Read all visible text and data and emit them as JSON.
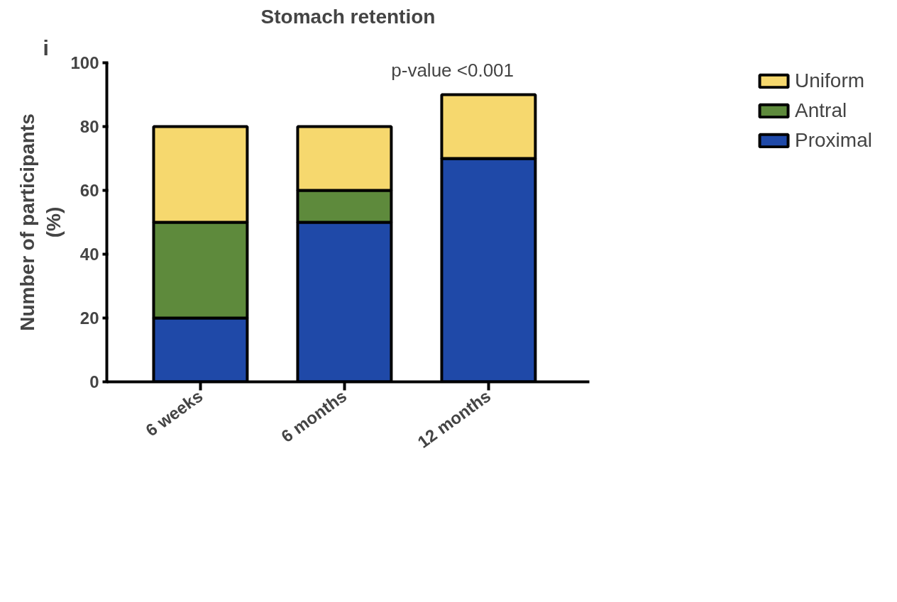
{
  "chart_data": {
    "type": "bar",
    "title": "Stomach retention",
    "ylabel": "Number of participants\n(%)",
    "categories": [
      "6 weeks",
      "6 months",
      "12 months"
    ],
    "stacked": true,
    "ylim": [
      0,
      100
    ],
    "yticks": [
      0,
      20,
      40,
      60,
      80,
      100
    ],
    "grid": false,
    "legend": "top right",
    "series": [
      {
        "name": "Proximal",
        "color": "#1f49a8",
        "values": [
          20,
          50,
          70
        ]
      },
      {
        "name": "Antral",
        "color": "#5e8a3c",
        "values": [
          30,
          10,
          0
        ]
      },
      {
        "name": "Uniform",
        "color": "#f6d86e",
        "values": [
          30,
          20,
          20
        ]
      }
    ],
    "annotations": [
      "i",
      "p-value <0.001"
    ]
  }
}
